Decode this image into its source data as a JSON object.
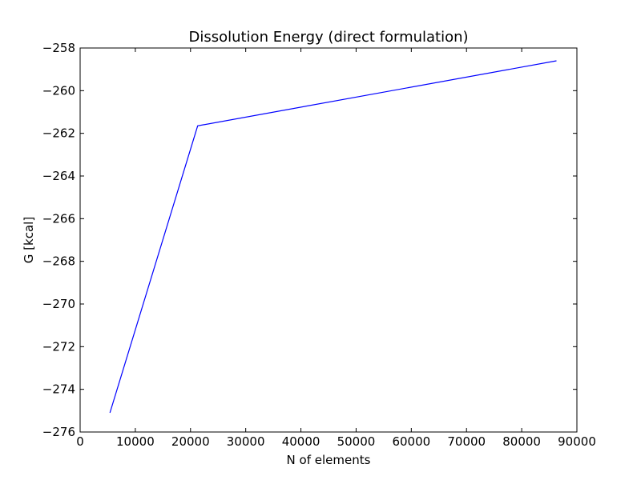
{
  "chart_data": {
    "type": "line",
    "title": "Dissolution Energy (direct formulation)",
    "xlabel": "N of elements",
    "ylabel": "G  [kcal]",
    "xlim": [
      0,
      90000
    ],
    "ylim": [
      -276,
      -258
    ],
    "xticks": [
      0,
      10000,
      20000,
      30000,
      40000,
      50000,
      60000,
      70000,
      80000,
      90000
    ],
    "yticks": [
      -276,
      -274,
      -272,
      -270,
      -268,
      -266,
      -264,
      -262,
      -260,
      -258
    ],
    "xtick_labels": [
      "0",
      "10000",
      "20000",
      "30000",
      "40000",
      "50000",
      "60000",
      "70000",
      "80000",
      "90000"
    ],
    "ytick_labels": [
      "−276",
      "−274",
      "−272",
      "−270",
      "−268",
      "−266",
      "−264",
      "−262",
      "−260",
      "−258"
    ],
    "grid": false,
    "series": [
      {
        "color": "#0000ff",
        "x": [
          5400,
          21300,
          86300
        ],
        "y": [
          -275.1,
          -261.65,
          -258.6
        ]
      }
    ]
  }
}
